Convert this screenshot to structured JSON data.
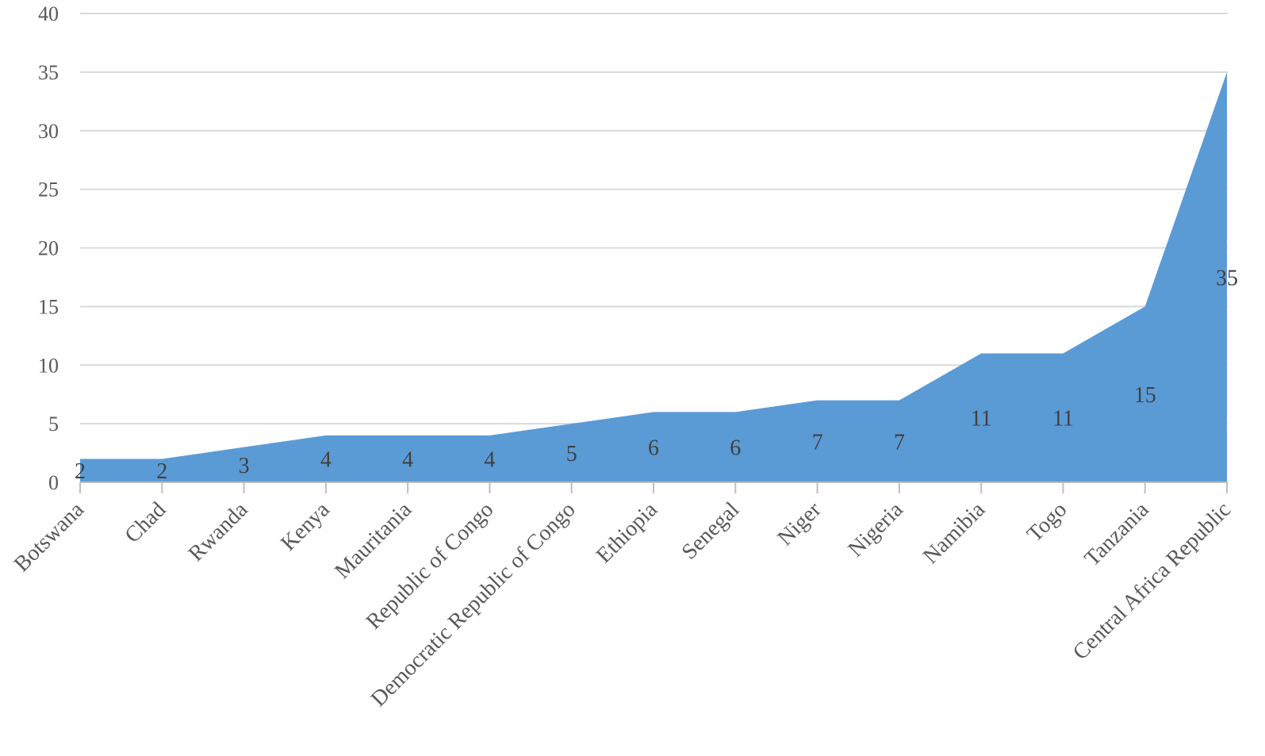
{
  "chart_data": {
    "type": "area",
    "title": "",
    "xlabel": "",
    "ylabel": "",
    "categories": [
      "Botswana",
      "Chad",
      "Rwanda",
      "Kenya",
      "Mauritania",
      "Republic of Congo",
      "Democratic Republic of Congo",
      "Ethiopia",
      "Senegal",
      "Niger",
      "Nigeria",
      "Namibia",
      "Togo",
      "Tanzania",
      "Central Africa Republic"
    ],
    "values": [
      2,
      2,
      3,
      4,
      4,
      4,
      5,
      6,
      6,
      7,
      7,
      11,
      11,
      15,
      35
    ],
    "ylim": [
      0,
      40
    ],
    "yticks": [
      0,
      5,
      10,
      15,
      20,
      25,
      30,
      35,
      40
    ],
    "grid": true,
    "legend": "none",
    "data_labels": true,
    "fill_color": "#5b9bd5"
  }
}
